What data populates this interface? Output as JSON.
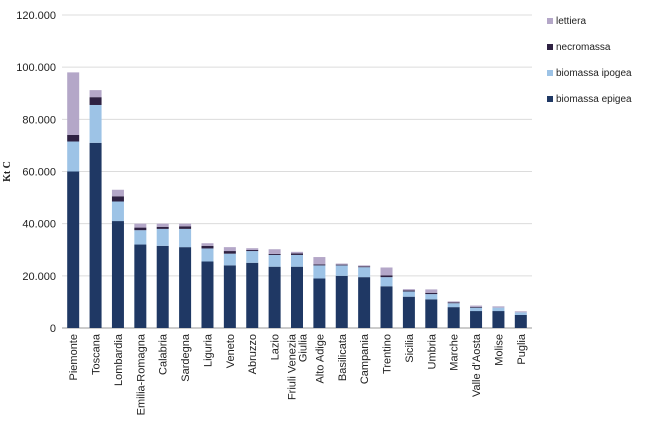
{
  "chart_data": {
    "type": "bar",
    "stacked": true,
    "ylabel": "Kt C",
    "ylim": [
      0,
      120000
    ],
    "yticks": [
      0,
      20000,
      40000,
      60000,
      80000,
      100000,
      120000
    ],
    "ytick_labels": [
      "0",
      "20.000",
      "40.000",
      "60.000",
      "80.000",
      "100.000",
      "120.000"
    ],
    "grid": true,
    "legend_position": "top-right",
    "categories": [
      "Piemonte",
      "Toscana",
      "Lombardia",
      "Emilia-Romagna",
      "Calabria",
      "Sardegna",
      "Liguria",
      "Veneto",
      "Abruzzo",
      "Lazio",
      "Friuli Venezia Giulia",
      "Alto Adige",
      "Basilicata",
      "Campania",
      "Trentino",
      "Sicilia",
      "Umbria",
      "Marche",
      "Valle d'Aosta",
      "Molise",
      "Puglia"
    ],
    "category_lines": [
      [
        "Piemonte"
      ],
      [
        "Toscana"
      ],
      [
        "Lombardia"
      ],
      [
        "Emilia-Romagna"
      ],
      [
        "Calabria"
      ],
      [
        "Sardegna"
      ],
      [
        "Liguria"
      ],
      [
        "Veneto"
      ],
      [
        "Abruzzo"
      ],
      [
        "Lazio"
      ],
      [
        "Friuli Venezia",
        "Giulia"
      ],
      [
        "Alto Adige"
      ],
      [
        "Basilicata"
      ],
      [
        "Campania"
      ],
      [
        "Trentino"
      ],
      [
        "Sicilia"
      ],
      [
        "Umbria"
      ],
      [
        "Marche"
      ],
      [
        "Valle d'Aosta"
      ],
      [
        "Molise"
      ],
      [
        "Puglia"
      ]
    ],
    "series": [
      {
        "name": "biomassa epigea",
        "color": "#1f3864",
        "values": [
          60000,
          71000,
          41000,
          32000,
          31500,
          31000,
          25500,
          24000,
          25000,
          23500,
          23500,
          19000,
          20000,
          19500,
          16000,
          12000,
          11000,
          8000,
          6500,
          6500,
          5000
        ]
      },
      {
        "name": "biomassa ipogea",
        "color": "#9dc3e6",
        "values": [
          11500,
          14500,
          7500,
          5500,
          6500,
          7000,
          5000,
          4500,
          4500,
          4500,
          4500,
          5000,
          4000,
          3800,
          3500,
          2000,
          2000,
          1500,
          1300,
          1300,
          1000
        ]
      },
      {
        "name": "necromassa",
        "color": "#2e2142",
        "values": [
          2500,
          3000,
          2000,
          1000,
          800,
          1000,
          1000,
          1000,
          400,
          400,
          600,
          400,
          300,
          300,
          700,
          400,
          500,
          300,
          300,
          0,
          0
        ]
      },
      {
        "name": "lettiera",
        "color": "#b4a7c8",
        "values": [
          24000,
          2700,
          2500,
          1500,
          1200,
          1000,
          1000,
          1500,
          700,
          1800,
          600,
          2800,
          400,
          400,
          3000,
          500,
          1300,
          400,
          500,
          500,
          400
        ]
      }
    ]
  }
}
